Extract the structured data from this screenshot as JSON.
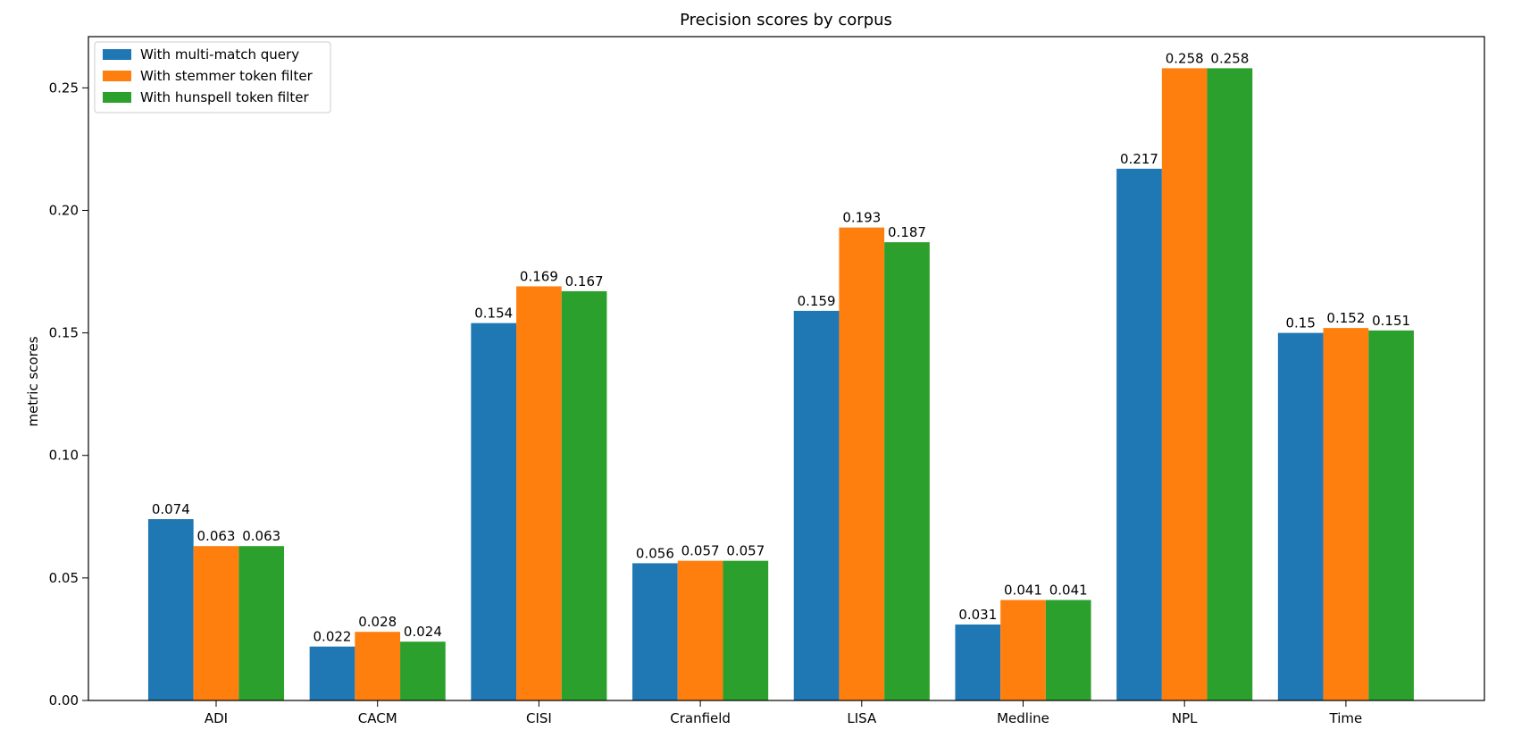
{
  "chart_data": {
    "type": "bar",
    "title": "Precision scores by corpus",
    "xlabel": "",
    "ylabel": "metric scores",
    "categories": [
      "ADI",
      "CACM",
      "CISI",
      "Cranfield",
      "LISA",
      "Medline",
      "NPL",
      "Time"
    ],
    "series": [
      {
        "name": "With multi-match query",
        "color": "#1f77b4",
        "values": [
          0.074,
          0.022,
          0.154,
          0.056,
          0.159,
          0.031,
          0.217,
          0.15
        ]
      },
      {
        "name": "With stemmer token filter",
        "color": "#ff7f0e",
        "values": [
          0.063,
          0.028,
          0.169,
          0.057,
          0.193,
          0.041,
          0.258,
          0.152
        ]
      },
      {
        "name": "With hunspell token filter",
        "color": "#2ca02c",
        "values": [
          0.063,
          0.024,
          0.167,
          0.057,
          0.187,
          0.041,
          0.258,
          0.151
        ]
      }
    ],
    "data_labels": [
      [
        "0.074",
        "0.022",
        "0.154",
        "0.056",
        "0.159",
        "0.031",
        "0.217",
        "0.15"
      ],
      [
        "0.063",
        "0.028",
        "0.169",
        "0.057",
        "0.193",
        "0.041",
        "0.258",
        "0.152"
      ],
      [
        "0.063",
        "0.024",
        "0.167",
        "0.057",
        "0.187",
        "0.041",
        "0.258",
        "0.151"
      ]
    ],
    "yticks": [
      "0.00",
      "0.05",
      "0.10",
      "0.15",
      "0.20",
      "0.25"
    ],
    "ylim": [
      0,
      0.2709
    ],
    "grid": false,
    "legend_position": "top-left"
  }
}
